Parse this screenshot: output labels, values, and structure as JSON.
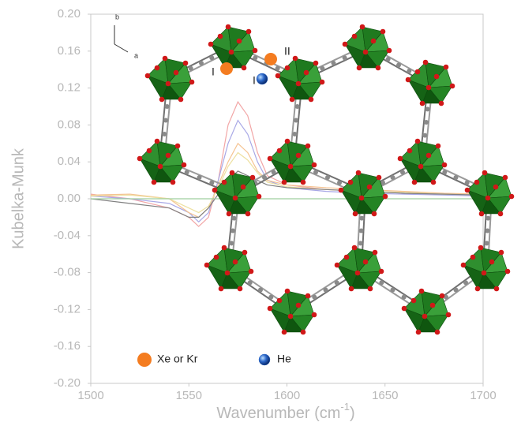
{
  "chart_data": {
    "type": "line",
    "y_label": "Kubelka-Munk",
    "x_label": {
      "text": "Wavenumber (cm",
      "sup": "-1",
      "end": ")"
    },
    "x": [
      1500,
      1520,
      1540,
      1550,
      1555,
      1560,
      1565,
      1570,
      1575,
      1580,
      1585,
      1590,
      1600,
      1620,
      1640,
      1660,
      1680,
      1700
    ],
    "series": [
      {
        "color": "#f2a6a6",
        "values": [
          0.005,
          0,
          -0.01,
          -0.02,
          -0.03,
          -0.02,
          0.02,
          0.08,
          0.105,
          0.09,
          0.05,
          0.025,
          0.015,
          0.01,
          0.008,
          0.006,
          0.005,
          0.004
        ]
      },
      {
        "color": "#a8a8e6",
        "values": [
          0.003,
          0,
          -0.005,
          -0.015,
          -0.025,
          -0.015,
          0.02,
          0.06,
          0.085,
          0.07,
          0.04,
          0.02,
          0.012,
          0.008,
          0.006,
          0.005,
          0.004,
          0.003
        ]
      },
      {
        "color": "#f5c391",
        "values": [
          0.004,
          0.005,
          0,
          -0.015,
          -0.02,
          -0.01,
          0.015,
          0.04,
          0.06,
          0.05,
          0.03,
          0.02,
          0.015,
          0.012,
          0.01,
          0.008,
          0.006,
          0.005
        ]
      },
      {
        "color": "#ede0a0",
        "values": [
          0.003,
          0.004,
          0,
          -0.01,
          -0.015,
          -0.008,
          0.012,
          0.035,
          0.05,
          0.042,
          0.028,
          0.018,
          0.013,
          0.01,
          0.008,
          0.007,
          0.005,
          0.004
        ]
      },
      {
        "color": "#808080",
        "values": [
          0,
          -0.005,
          -0.01,
          -0.02,
          -0.02,
          -0.01,
          0.005,
          0.02,
          0.03,
          0.025,
          0.02,
          0.015,
          0.012,
          0.01,
          0.008,
          0.006,
          0.005,
          0.004
        ]
      },
      {
        "color": "#9fcf9f",
        "values": [
          0,
          0,
          0,
          0,
          0,
          0,
          0,
          0,
          0,
          0,
          0,
          0,
          0,
          0,
          0,
          0,
          0,
          0
        ]
      }
    ],
    "xlim": [
      1500,
      1700
    ],
    "xticks": [
      1500,
      1550,
      1600,
      1650,
      1700
    ],
    "ylim": [
      -0.2,
      0.2
    ],
    "yticks": [
      {
        "value": -0.2,
        "label": "-0.20"
      },
      -0.16,
      -0.12,
      -0.08,
      -0.04,
      {
        "value": 0,
        "label": "0.00"
      },
      0.04,
      0.08,
      0.12,
      0.16,
      {
        "value": 0.2,
        "label": "0.20"
      }
    ],
    "site_labels": [
      "I",
      "II",
      "I"
    ],
    "axis_labels": [
      "b",
      "a"
    ],
    "legend_items": [
      {
        "label": "Xe or Kr",
        "color": "#f47c20"
      },
      {
        "label": "He",
        "color": "#2a66c8"
      }
    ]
  }
}
